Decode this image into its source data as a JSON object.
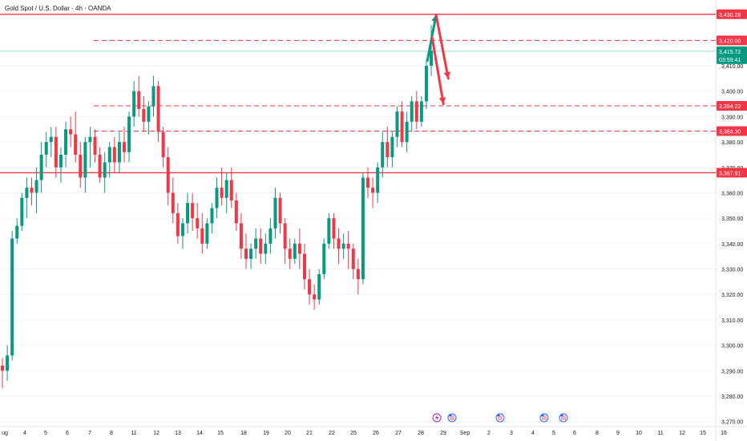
{
  "chart_data": {
    "type": "candlestick",
    "title": "Gold Spot / U.S. Dollar · 4h · OANDA",
    "ylim": [
      3268,
      3434
    ],
    "yticks": [
      3270,
      3280,
      3290,
      3300,
      3310,
      3320,
      3330,
      3340,
      3350,
      3360,
      3370,
      3380,
      3390,
      3400,
      3410
    ],
    "ytick_labels": [
      "3,270.00",
      "3,280.00",
      "3,290.00",
      "3,300.00",
      "3,310.00",
      "3,320.00",
      "3,330.00",
      "3,340.00",
      "3,350.00",
      "3,360.00",
      "3,370.00",
      "3,380.00",
      "3,390.00",
      "3,400.00",
      "3,410.00"
    ],
    "xtick_labels": [
      "ug",
      "4",
      "5",
      "6",
      "7",
      "8",
      "11",
      "12",
      "13",
      "14",
      "15",
      "18",
      "19",
      "20",
      "21",
      "22",
      "25",
      "26",
      "27",
      "28",
      "29",
      "Sep",
      "2",
      "3",
      "4",
      "5",
      "6",
      "8",
      "9",
      "10",
      "11",
      "12",
      "15",
      "16"
    ],
    "levels": [
      {
        "value": 3430.28,
        "label": "3,430.28",
        "style": "solid"
      },
      {
        "value": 3420.0,
        "label": "3,420.00",
        "style": "dashed"
      },
      {
        "value": 3394.22,
        "label": "3,394.22",
        "style": "dashed"
      },
      {
        "value": 3384.3,
        "label": "3,384.30",
        "style": "dashed"
      },
      {
        "value": 3367.91,
        "label": "3,367.91",
        "style": "solid"
      }
    ],
    "last_price": {
      "value": 3415.72,
      "label": "3,415.72",
      "countdown": "03:59:41"
    },
    "candles": [
      [
        3292,
        3295,
        3283,
        3290
      ],
      [
        3290,
        3300,
        3286,
        3296
      ],
      [
        3296,
        3345,
        3294,
        3342
      ],
      [
        3342,
        3350,
        3340,
        3347
      ],
      [
        3347,
        3360,
        3345,
        3358
      ],
      [
        3358,
        3366,
        3350,
        3362
      ],
      [
        3362,
        3366,
        3355,
        3360
      ],
      [
        3360,
        3370,
        3352,
        3365
      ],
      [
        3365,
        3380,
        3360,
        3375
      ],
      [
        3375,
        3384,
        3370,
        3380
      ],
      [
        3380,
        3386,
        3374,
        3382
      ],
      [
        3382,
        3386,
        3366,
        3370
      ],
      [
        3370,
        3378,
        3364,
        3375
      ],
      [
        3375,
        3388,
        3370,
        3385
      ],
      [
        3385,
        3390,
        3378,
        3383
      ],
      [
        3383,
        3392,
        3372,
        3375
      ],
      [
        3375,
        3380,
        3362,
        3366
      ],
      [
        3366,
        3382,
        3360,
        3380
      ],
      [
        3380,
        3386,
        3370,
        3382
      ],
      [
        3382,
        3385,
        3372,
        3375
      ],
      [
        3375,
        3378,
        3364,
        3366
      ],
      [
        3366,
        3376,
        3360,
        3372
      ],
      [
        3372,
        3380,
        3366,
        3378
      ],
      [
        3378,
        3382,
        3368,
        3372
      ],
      [
        3372,
        3384,
        3368,
        3380
      ],
      [
        3380,
        3386,
        3372,
        3376
      ],
      [
        3376,
        3392,
        3372,
        3390
      ],
      [
        3390,
        3404,
        3386,
        3400
      ],
      [
        3400,
        3406,
        3390,
        3393
      ],
      [
        3393,
        3398,
        3384,
        3388
      ],
      [
        3388,
        3396,
        3383,
        3394
      ],
      [
        3394,
        3406,
        3390,
        3402
      ],
      [
        3402,
        3404,
        3380,
        3384
      ],
      [
        3384,
        3386,
        3370,
        3374
      ],
      [
        3374,
        3378,
        3355,
        3360
      ],
      [
        3360,
        3366,
        3348,
        3352
      ],
      [
        3352,
        3356,
        3340,
        3343
      ],
      [
        3343,
        3350,
        3338,
        3348
      ],
      [
        3348,
        3360,
        3344,
        3356
      ],
      [
        3356,
        3360,
        3345,
        3350
      ],
      [
        3350,
        3356,
        3342,
        3346
      ],
      [
        3346,
        3352,
        3336,
        3340
      ],
      [
        3340,
        3350,
        3338,
        3348
      ],
      [
        3348,
        3356,
        3344,
        3354
      ],
      [
        3354,
        3366,
        3350,
        3362
      ],
      [
        3362,
        3370,
        3355,
        3358
      ],
      [
        3358,
        3368,
        3352,
        3365
      ],
      [
        3365,
        3370,
        3354,
        3357
      ],
      [
        3357,
        3360,
        3345,
        3348
      ],
      [
        3348,
        3352,
        3334,
        3338
      ],
      [
        3338,
        3344,
        3330,
        3334
      ],
      [
        3334,
        3340,
        3330,
        3338
      ],
      [
        3338,
        3346,
        3334,
        3342
      ],
      [
        3342,
        3346,
        3332,
        3336
      ],
      [
        3336,
        3344,
        3332,
        3340
      ],
      [
        3340,
        3350,
        3336,
        3346
      ],
      [
        3346,
        3362,
        3342,
        3358
      ],
      [
        3358,
        3360,
        3344,
        3348
      ],
      [
        3348,
        3350,
        3332,
        3338
      ],
      [
        3338,
        3342,
        3330,
        3334
      ],
      [
        3334,
        3342,
        3332,
        3340
      ],
      [
        3340,
        3346,
        3330,
        3336
      ],
      [
        3336,
        3340,
        3322,
        3326
      ],
      [
        3326,
        3330,
        3316,
        3320
      ],
      [
        3320,
        3324,
        3314,
        3318
      ],
      [
        3318,
        3330,
        3316,
        3328
      ],
      [
        3328,
        3342,
        3326,
        3340
      ],
      [
        3340,
        3352,
        3338,
        3350
      ],
      [
        3350,
        3352,
        3338,
        3342
      ],
      [
        3342,
        3346,
        3332,
        3338
      ],
      [
        3338,
        3344,
        3334,
        3340
      ],
      [
        3340,
        3345,
        3330,
        3338
      ],
      [
        3338,
        3340,
        3326,
        3330
      ],
      [
        3330,
        3334,
        3320,
        3326
      ],
      [
        3326,
        3368,
        3324,
        3366
      ],
      [
        3366,
        3370,
        3358,
        3362
      ],
      [
        3362,
        3366,
        3354,
        3360
      ],
      [
        3360,
        3372,
        3356,
        3370
      ],
      [
        3370,
        3384,
        3366,
        3380
      ],
      [
        3380,
        3386,
        3370,
        3374
      ],
      [
        3374,
        3384,
        3370,
        3382
      ],
      [
        3382,
        3394,
        3378,
        3392
      ],
      [
        3392,
        3396,
        3378,
        3380
      ],
      [
        3380,
        3392,
        3376,
        3388
      ],
      [
        3388,
        3398,
        3384,
        3396
      ],
      [
        3396,
        3400,
        3385,
        3388
      ],
      [
        3388,
        3398,
        3386,
        3396
      ],
      [
        3396,
        3412,
        3393,
        3410
      ],
      [
        3410,
        3426,
        3406,
        3416
      ]
    ],
    "annotations": [
      {
        "type": "arrow",
        "color": "#089981",
        "from": [
          87.2,
          3412
        ],
        "to": [
          89.0,
          3430
        ]
      },
      {
        "type": "arrow",
        "color": "#f23645",
        "from": [
          89.0,
          3430
        ],
        "to": [
          91.5,
          3405
        ]
      },
      {
        "type": "arrow",
        "color": "#f23645",
        "from": [
          88.2,
          3421
        ],
        "to": [
          90.5,
          3395
        ]
      }
    ],
    "event_markers": [
      "flash-icon",
      "us-flag-icon",
      "us-flag-icon",
      "us-flag-icon",
      "us-flag-icon"
    ],
    "colors": {
      "up": "#089981",
      "down": "#f23645",
      "level": "#f23645",
      "grid": "#f0f3fa",
      "text": "#131722"
    }
  }
}
